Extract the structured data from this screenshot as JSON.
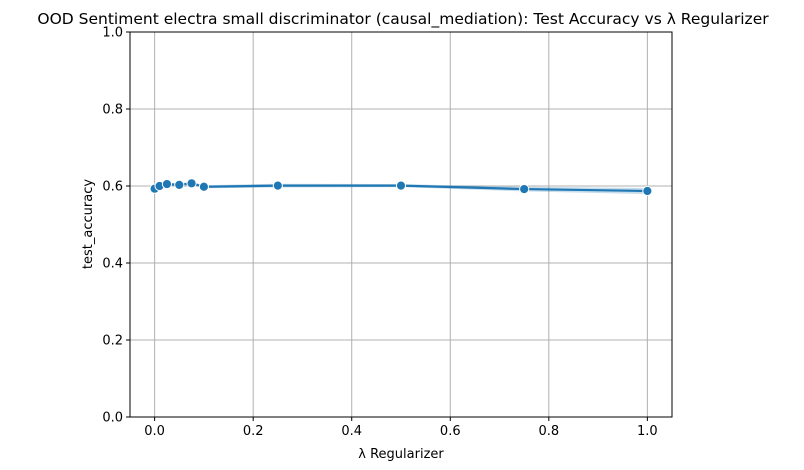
{
  "chart_data": {
    "type": "line",
    "title": "OOD Sentiment electra small discriminator (causal_mediation): Test Accuracy vs λ Regularizer",
    "xlabel": "λ Regularizer",
    "ylabel": "test_accuracy",
    "xlim": [
      -0.05,
      1.05
    ],
    "ylim": [
      0,
      1
    ],
    "xticks": [
      0.0,
      0.2,
      0.4,
      0.6,
      0.8,
      1.0
    ],
    "xtick_labels": [
      "0.0",
      "0.2",
      "0.4",
      "0.6",
      "0.8",
      "1.0"
    ],
    "yticks": [
      0.0,
      0.2,
      0.4,
      0.6,
      0.8,
      1.0
    ],
    "ytick_labels": [
      "0.0",
      "0.2",
      "0.4",
      "0.6",
      "0.8",
      "1.0"
    ],
    "grid": true,
    "legend": false,
    "series": [
      {
        "color": "#1f77b4",
        "marker": "circle",
        "x": [
          0.0,
          0.01,
          0.025,
          0.05,
          0.075,
          0.1,
          0.25,
          0.5,
          0.75,
          1.0
        ],
        "y": [
          0.593,
          0.6,
          0.605,
          0.603,
          0.607,
          0.598,
          0.601,
          0.601,
          0.592,
          0.587
        ],
        "ci_low": [
          0.588,
          0.596,
          0.601,
          0.599,
          0.603,
          0.594,
          0.596,
          0.597,
          0.586,
          0.579
        ],
        "ci_high": [
          0.598,
          0.604,
          0.609,
          0.607,
          0.611,
          0.602,
          0.606,
          0.605,
          0.598,
          0.595
        ]
      }
    ]
  }
}
